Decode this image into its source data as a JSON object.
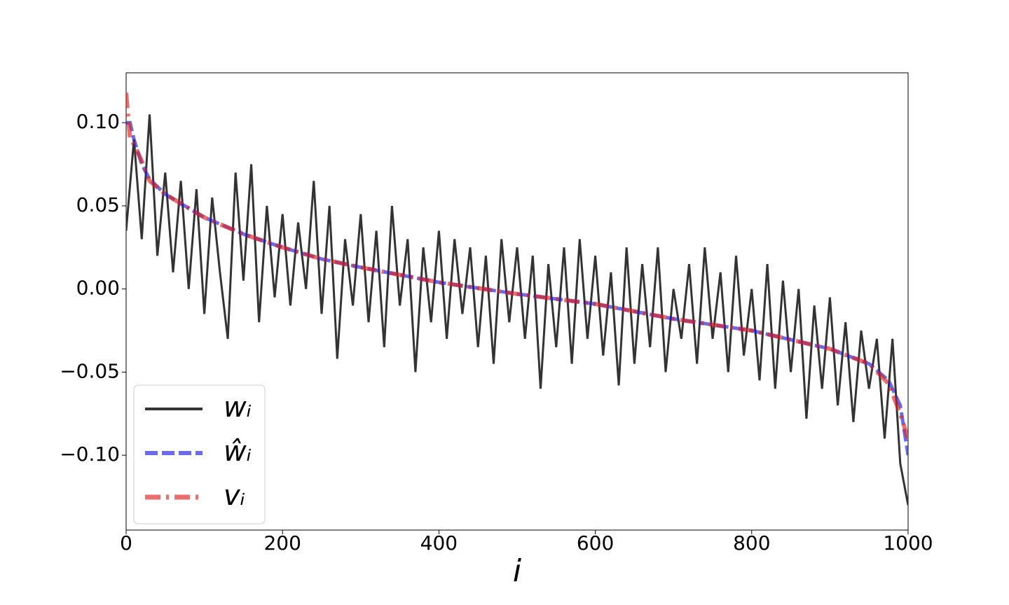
{
  "chart_data": {
    "type": "line",
    "xlabel": "i",
    "xlim": [
      0,
      1000
    ],
    "xticks": [
      0,
      200,
      400,
      600,
      800,
      1000
    ],
    "ylim": [
      -0.145,
      0.13
    ],
    "yticks": [
      {
        "value": 0.1,
        "label": "0.10"
      },
      {
        "value": 0.05,
        "label": "0.05"
      },
      {
        "value": 0,
        "label": "0.00"
      },
      {
        "value": -0.05,
        "label": "−0.05"
      },
      {
        "value": -0.1,
        "label": "−0.10"
      }
    ],
    "legend": "lower left",
    "series": [
      {
        "name": "wᵢ",
        "color": "#333333",
        "style": "solid",
        "x": [
          0,
          10,
          20,
          30,
          40,
          50,
          60,
          70,
          80,
          90,
          100,
          110,
          120,
          130,
          140,
          150,
          160,
          170,
          180,
          190,
          200,
          210,
          220,
          230,
          240,
          250,
          260,
          270,
          280,
          290,
          300,
          310,
          320,
          330,
          340,
          350,
          360,
          370,
          380,
          390,
          400,
          410,
          420,
          430,
          440,
          450,
          460,
          470,
          480,
          490,
          500,
          510,
          520,
          530,
          540,
          550,
          560,
          570,
          580,
          590,
          600,
          610,
          620,
          630,
          640,
          650,
          660,
          670,
          680,
          690,
          700,
          710,
          720,
          730,
          740,
          750,
          760,
          770,
          780,
          790,
          800,
          810,
          820,
          830,
          840,
          850,
          860,
          870,
          880,
          890,
          900,
          910,
          920,
          930,
          940,
          950,
          960,
          970,
          980,
          990,
          1000
        ],
        "values": [
          0.035,
          0.09,
          0.03,
          0.105,
          0.02,
          0.07,
          0.01,
          0.065,
          0.0,
          0.06,
          -0.015,
          0.055,
          0.01,
          -0.03,
          0.07,
          0.005,
          0.075,
          -0.02,
          0.05,
          -0.005,
          0.045,
          -0.01,
          0.04,
          0.0,
          0.065,
          -0.015,
          0.05,
          -0.042,
          0.03,
          -0.01,
          0.045,
          -0.02,
          0.035,
          -0.035,
          0.05,
          -0.01,
          0.03,
          -0.05,
          0.025,
          -0.02,
          0.035,
          -0.03,
          0.03,
          -0.015,
          0.025,
          -0.035,
          0.02,
          -0.045,
          0.03,
          -0.02,
          0.025,
          -0.03,
          0.02,
          -0.06,
          0.015,
          -0.035,
          0.025,
          -0.045,
          0.03,
          -0.03,
          0.02,
          -0.04,
          0.01,
          -0.058,
          0.025,
          -0.045,
          0.015,
          -0.035,
          0.025,
          -0.05,
          0.0,
          -0.03,
          0.015,
          -0.045,
          0.025,
          -0.03,
          0.01,
          -0.05,
          0.02,
          -0.04,
          0.0,
          -0.055,
          0.015,
          -0.06,
          0.005,
          -0.05,
          0.0,
          -0.078,
          -0.01,
          -0.06,
          -0.005,
          -0.07,
          -0.02,
          -0.08,
          -0.025,
          -0.06,
          -0.03,
          -0.09,
          -0.03,
          -0.105,
          -0.13
        ]
      },
      {
        "name": "ŵᵢ",
        "color": "#1a1adf",
        "style": "dashed",
        "x": [
          0,
          5,
          10,
          20,
          30,
          50,
          75,
          100,
          150,
          200,
          250,
          300,
          400,
          500,
          600,
          700,
          800,
          900,
          950,
          975,
          990,
          1000
        ],
        "values": [
          0.1,
          0.1,
          0.09,
          0.075,
          0.066,
          0.057,
          0.05,
          0.043,
          0.033,
          0.025,
          0.018,
          0.013,
          0.004,
          -0.003,
          -0.009,
          -0.018,
          -0.025,
          -0.036,
          -0.045,
          -0.055,
          -0.07,
          -0.1
        ]
      },
      {
        "name": "vᵢ",
        "color": "#e02020",
        "style": "dashdot",
        "x": [
          0,
          5,
          10,
          20,
          30,
          50,
          75,
          100,
          150,
          200,
          250,
          300,
          400,
          500,
          600,
          700,
          800,
          900,
          950,
          975,
          990,
          1000
        ],
        "values": [
          0.118,
          0.09,
          0.087,
          0.077,
          0.065,
          0.057,
          0.05,
          0.043,
          0.033,
          0.025,
          0.018,
          0.013,
          0.004,
          -0.003,
          -0.009,
          -0.018,
          -0.025,
          -0.036,
          -0.045,
          -0.057,
          -0.075,
          -0.09
        ]
      }
    ]
  }
}
